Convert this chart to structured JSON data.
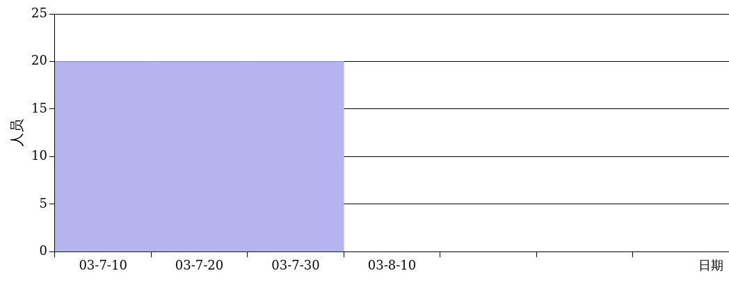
{
  "chart_data": {
    "type": "bar",
    "xlabel": "日期",
    "ylabel": "人员",
    "categories": [
      "03-7-10",
      "03-7-20",
      "03-7-30",
      "03-8-10",
      null,
      null,
      null
    ],
    "values": [
      20,
      20,
      20,
      null,
      null,
      null,
      null
    ],
    "color": "#b4b4f0",
    "ylim": [
      0,
      25
    ],
    "yticks": [
      0,
      5,
      10,
      15,
      20,
      25
    ],
    "grid": "y",
    "legend": false
  }
}
